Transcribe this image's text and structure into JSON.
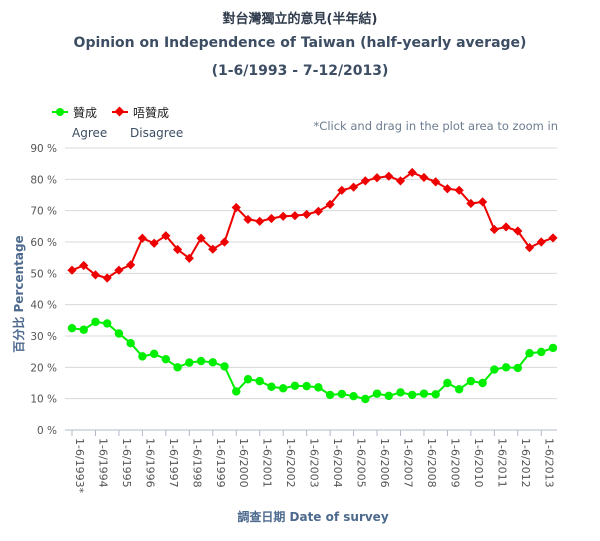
{
  "chart_data": {
    "type": "line",
    "title_zh": "對台灣獨立的意見(半年結)",
    "title": "Opinion on Independence of Taiwan (half-yearly average)",
    "subtitle": "(1-6/1993 - 7-12/2013)",
    "ylabel": "百分比 Percentage",
    "xlabel": "調查日期 Date of survey",
    "zoom_hint": "*Click and drag in the plot area to zoom in",
    "ylim": [
      0,
      90
    ],
    "yticks": [
      0,
      10,
      20,
      30,
      40,
      50,
      60,
      70,
      80,
      90
    ],
    "ytick_labels": [
      "0 %",
      "10 %",
      "20 %",
      "30 %",
      "40 %",
      "50 %",
      "60 %",
      "70 %",
      "80 %",
      "90 %"
    ],
    "grid": true,
    "legend_position": "top-left",
    "x_tick_labels": [
      "1-6/1993*",
      "1-6/1994",
      "1-6/1995",
      "1-6/1996",
      "1-6/1997",
      "1-6/1998",
      "1-6/1999",
      "1-6/2000",
      "1-6/2001",
      "1-6/2002",
      "1-6/2003",
      "1-6/2004",
      "1-6/2005",
      "1-6/2006",
      "1-6/2007",
      "1-6/2008",
      "1-6/2009",
      "1-6/2010",
      "1-6/2011",
      "1-6/2012",
      "1-6/2013"
    ],
    "x_tick_every": 2,
    "series": [
      {
        "name": "贊成",
        "name_en": "Agree",
        "color": "#00ee00",
        "marker": "circle",
        "values": [
          32.5,
          32.0,
          34.5,
          34.0,
          30.8,
          27.7,
          23.5,
          24.3,
          22.6,
          20.0,
          21.5,
          22.0,
          21.6,
          20.3,
          12.3,
          16.2,
          15.6,
          13.8,
          13.3,
          14.1,
          14.0,
          13.6,
          11.2,
          11.5,
          10.8,
          9.9,
          11.6,
          10.9,
          12.0,
          11.2,
          11.6,
          11.4,
          15.0,
          13.0,
          15.6,
          15.0,
          19.3,
          20.0,
          19.8,
          24.5,
          24.9,
          26.2
        ]
      },
      {
        "name": "唔贊成",
        "name_en": "Disagree",
        "color": "#ee0000",
        "marker": "diamond",
        "values": [
          51.0,
          52.5,
          49.5,
          48.5,
          51.0,
          52.7,
          61.2,
          59.6,
          62.0,
          57.6,
          54.8,
          61.2,
          57.7,
          60.0,
          71.0,
          67.2,
          66.6,
          67.5,
          68.2,
          68.4,
          68.8,
          69.8,
          72.0,
          76.5,
          77.5,
          79.5,
          80.5,
          81.0,
          79.5,
          82.2,
          80.6,
          79.2,
          77.0,
          76.5,
          72.3,
          72.8,
          64.0,
          64.8,
          63.5,
          58.2,
          60.0,
          61.3
        ]
      }
    ]
  }
}
